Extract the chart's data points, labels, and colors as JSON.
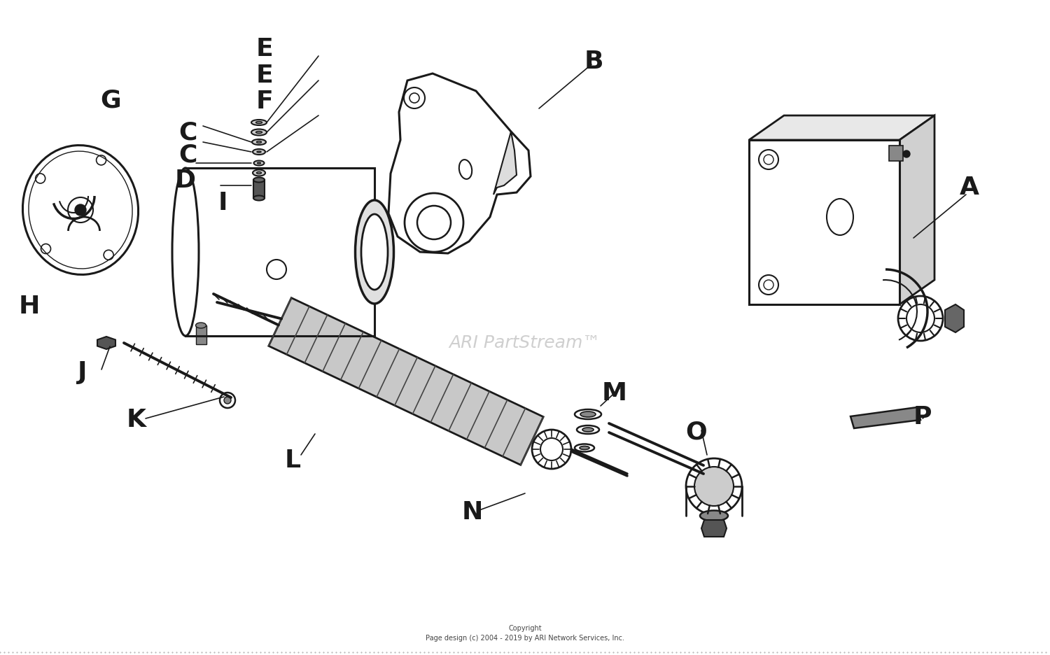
{
  "bg_color": "#ffffff",
  "line_color": "#1a1a1a",
  "watermark_text": "ARI PartStream™",
  "watermark_color": "#bbbbbb",
  "copyright_line1": "Copyright",
  "copyright_line2": "Page design (c) 2004 - 2019 by ARI Network Services, Inc.",
  "label_fontsize": 26,
  "label_fontweight": "black",
  "labels": [
    [
      "A",
      1385,
      268,
      "center"
    ],
    [
      "B",
      848,
      88,
      "center"
    ],
    [
      "C",
      268,
      190,
      "center"
    ],
    [
      "C",
      268,
      222,
      "center"
    ],
    [
      "D",
      265,
      258,
      "center"
    ],
    [
      "E",
      378,
      70,
      "center"
    ],
    [
      "E",
      378,
      108,
      "center"
    ],
    [
      "F",
      378,
      145,
      "center"
    ],
    [
      "G",
      158,
      143,
      "center"
    ],
    [
      "H",
      42,
      438,
      "center"
    ],
    [
      "I",
      318,
      290,
      "center"
    ],
    [
      "J",
      118,
      532,
      "center"
    ],
    [
      "K",
      195,
      600,
      "center"
    ],
    [
      "L",
      418,
      658,
      "center"
    ],
    [
      "M",
      878,
      562,
      "center"
    ],
    [
      "N",
      675,
      732,
      "center"
    ],
    [
      "O",
      995,
      618,
      "center"
    ],
    [
      "P",
      1318,
      596,
      "center"
    ]
  ],
  "lw": 2.0,
  "lw_thin": 1.2,
  "lw_thick": 2.8
}
